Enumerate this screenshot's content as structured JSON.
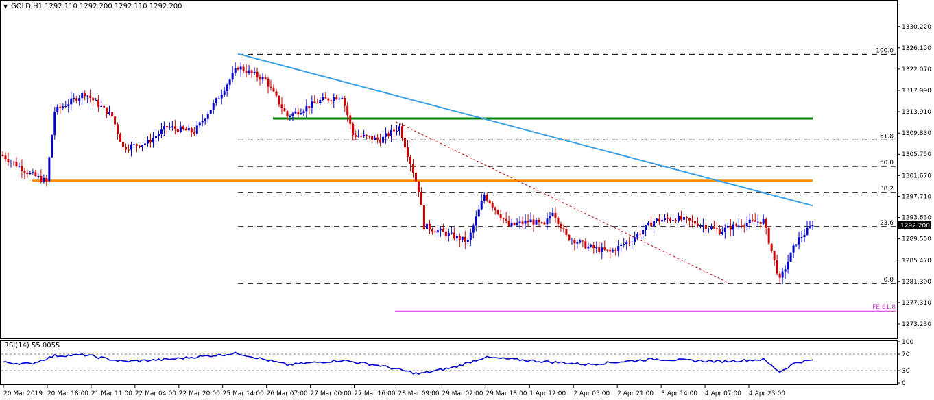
{
  "header": {
    "symbol": "GOLD,H1",
    "ohlc": "1292.110 1292.200 1292.110 1292.200"
  },
  "rsi": {
    "label": "RSI(14) 55.0055",
    "value": 55.0055,
    "levels": [
      70,
      30
    ],
    "axis_labels": [
      "100",
      "70",
      "30",
      "0"
    ],
    "color": "#0000cc"
  },
  "colors": {
    "bull": "#0000cc",
    "bear": "#cc0000",
    "trend": "#3aa0e6",
    "support": "#ff8c00",
    "resistance": "#008000",
    "fe": "#cc33cc",
    "grid": "#000000"
  },
  "chart_data": {
    "type": "candlestick",
    "symbol": "GOLD",
    "timeframe": "H1",
    "last_price": "1292.200",
    "ylim": [
      1271.0,
      1334.0
    ],
    "y_ticks": [
      "1330.220",
      "1326.150",
      "1322.070",
      "1317.990",
      "1313.910",
      "1309.830",
      "1305.750",
      "1301.670",
      "1297.710",
      "1293.630",
      "1289.550",
      "1285.470",
      "1281.390",
      "1277.310",
      "1273.230"
    ],
    "x_ticks": [
      "20 Mar 2019",
      "20 Mar 18:00",
      "21 Mar 11:00",
      "22 Mar 04:00",
      "22 Mar 20:00",
      "25 Mar 14:00",
      "26 Mar 07:00",
      "27 Mar 00:00",
      "27 Mar 16:00",
      "28 Mar 09:00",
      "29 Mar 02:00",
      "29 Mar 18:00",
      "1 Apr 12:00",
      "2 Apr 05:00",
      "2 Apr 21:00",
      "3 Apr 14:00",
      "4 Apr 07:00",
      "4 Apr 23:00"
    ],
    "fibonacci": {
      "levels": [
        {
          "label": "100.0",
          "price": 1324.9
        },
        {
          "label": "61.8",
          "price": 1308.5
        },
        {
          "label": "50.0",
          "price": 1303.4
        },
        {
          "label": "38.2",
          "price": 1298.4
        },
        {
          "label": "23.6",
          "price": 1291.9
        },
        {
          "label": "0.0",
          "price": 1281.0
        }
      ],
      "fe_label": "FE 61.8",
      "fe_price": 1275.7
    },
    "lines": {
      "support": 1300.7,
      "resistance": 1312.6,
      "trend_start": 1325.0,
      "trend_end": 1295.9,
      "dotted_start": 1312.0,
      "dotted_end": 1281.0
    },
    "anchors": [
      {
        "i": 0,
        "p": 1305.5
      },
      {
        "i": 10,
        "p": 1302.0
      },
      {
        "i": 16,
        "p": 1300.5
      },
      {
        "i": 19,
        "p": 1314.0
      },
      {
        "i": 30,
        "p": 1317.5
      },
      {
        "i": 40,
        "p": 1313.0
      },
      {
        "i": 44,
        "p": 1307.0
      },
      {
        "i": 53,
        "p": 1308.0
      },
      {
        "i": 60,
        "p": 1311.0
      },
      {
        "i": 70,
        "p": 1310.0
      },
      {
        "i": 78,
        "p": 1316.0
      },
      {
        "i": 86,
        "p": 1322.5
      },
      {
        "i": 96,
        "p": 1320.0
      },
      {
        "i": 104,
        "p": 1313.0
      },
      {
        "i": 116,
        "p": 1316.0
      },
      {
        "i": 124,
        "p": 1317.0
      },
      {
        "i": 128,
        "p": 1309.5
      },
      {
        "i": 138,
        "p": 1308.5
      },
      {
        "i": 145,
        "p": 1311.0
      },
      {
        "i": 152,
        "p": 1299.0
      },
      {
        "i": 154,
        "p": 1292.0
      },
      {
        "i": 165,
        "p": 1290.0
      },
      {
        "i": 170,
        "p": 1289.0
      },
      {
        "i": 176,
        "p": 1298.0
      },
      {
        "i": 185,
        "p": 1292.0
      },
      {
        "i": 193,
        "p": 1293.0
      },
      {
        "i": 198,
        "p": 1292.0
      },
      {
        "i": 201,
        "p": 1295.0
      },
      {
        "i": 206,
        "p": 1290.0
      },
      {
        "i": 214,
        "p": 1288.0
      },
      {
        "i": 222,
        "p": 1287.0
      },
      {
        "i": 230,
        "p": 1289.5
      },
      {
        "i": 238,
        "p": 1293.0
      },
      {
        "i": 246,
        "p": 1293.5
      },
      {
        "i": 254,
        "p": 1292.5
      },
      {
        "i": 262,
        "p": 1291.0
      },
      {
        "i": 270,
        "p": 1292.5
      },
      {
        "i": 278,
        "p": 1293.0
      },
      {
        "i": 284,
        "p": 1281.5
      },
      {
        "i": 290,
        "p": 1289.0
      },
      {
        "i": 296,
        "p": 1292.2
      }
    ],
    "rsi_anchors": [
      {
        "i": 0,
        "v": 50
      },
      {
        "i": 10,
        "v": 46
      },
      {
        "i": 19,
        "v": 66
      },
      {
        "i": 30,
        "v": 68
      },
      {
        "i": 44,
        "v": 52
      },
      {
        "i": 60,
        "v": 57
      },
      {
        "i": 86,
        "v": 72
      },
      {
        "i": 104,
        "v": 44
      },
      {
        "i": 124,
        "v": 55
      },
      {
        "i": 138,
        "v": 42
      },
      {
        "i": 152,
        "v": 22
      },
      {
        "i": 165,
        "v": 38
      },
      {
        "i": 176,
        "v": 62
      },
      {
        "i": 198,
        "v": 52
      },
      {
        "i": 214,
        "v": 45
      },
      {
        "i": 238,
        "v": 58
      },
      {
        "i": 262,
        "v": 52
      },
      {
        "i": 278,
        "v": 57
      },
      {
        "i": 284,
        "v": 27
      },
      {
        "i": 290,
        "v": 50
      },
      {
        "i": 296,
        "v": 55
      }
    ]
  }
}
